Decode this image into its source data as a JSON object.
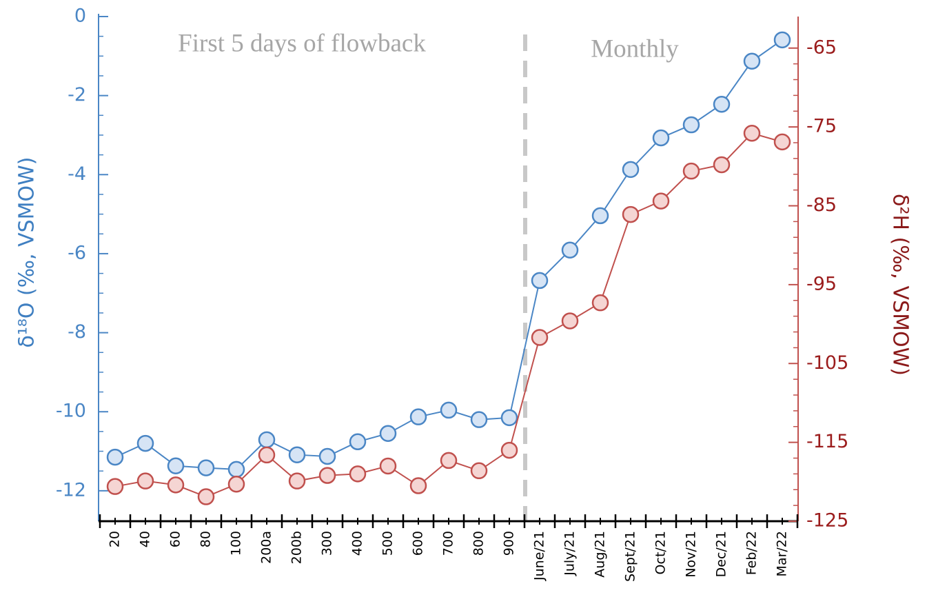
{
  "chart_data": {
    "type": "line",
    "ylabel": "δ¹⁸O (‰, VSMOW)",
    "y2label": "δ²H (‰, VSMOW)",
    "annotations": [
      "First 5 days of flowback",
      "Monthly"
    ],
    "categories": [
      "20",
      "40",
      "60",
      "80",
      "100",
      "200a",
      "200b",
      "300",
      "400",
      "500",
      "600",
      "700",
      "800",
      "900",
      "June/21",
      "July/21",
      "Aug/21",
      "Sept/21",
      "Oct/21",
      "Nov/21",
      "Dec/21",
      "Feb/22",
      "Mar/22"
    ],
    "series": [
      {
        "color": "#4a86c5",
        "fill": "#d6e4f5",
        "axis": "y",
        "values": [
          -11.15,
          -10.8,
          -11.37,
          -11.42,
          -11.46,
          -10.71,
          -11.09,
          -11.13,
          -10.76,
          -10.55,
          -10.13,
          -9.96,
          -10.2,
          -10.15,
          -6.68,
          -5.91,
          -5.04,
          -3.87,
          -3.07,
          -2.74,
          -2.22,
          -1.13,
          -0.59
        ]
      },
      {
        "color": "#c0504d",
        "fill": "#f5d5d3",
        "axis": "y2",
        "values": [
          -120.6,
          -119.9,
          -120.4,
          -121.9,
          -120.3,
          -116.6,
          -119.9,
          -119.2,
          -119.0,
          -118.0,
          -120.5,
          -117.3,
          -118.6,
          -116.0,
          -101.7,
          -99.6,
          -97.3,
          -86.1,
          -84.4,
          -80.6,
          -79.8,
          -75.8,
          -76.9
        ]
      }
    ],
    "ylim": [
      -12.77,
      0
    ],
    "yticks": [
      0,
      -2,
      -4,
      -6,
      -8,
      -10,
      -12
    ],
    "y2lim": [
      -125,
      -61
    ],
    "y2ticks": [
      -65,
      -75,
      -85,
      -95,
      -105,
      -115,
      -125
    ]
  }
}
